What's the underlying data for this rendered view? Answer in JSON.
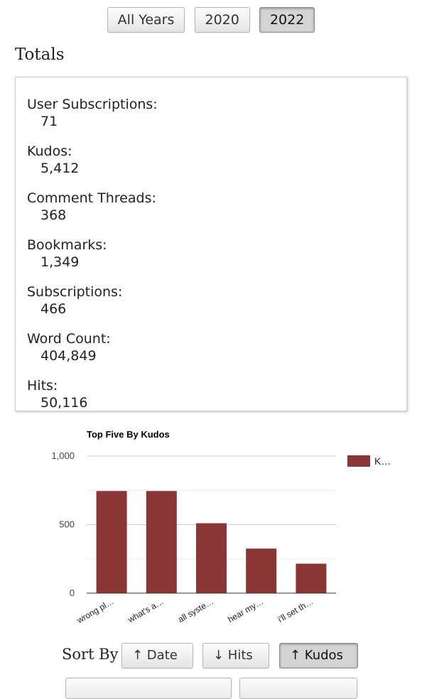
{
  "year_filter": {
    "buttons": [
      "All Years",
      "2020",
      "2022"
    ],
    "active": "2022"
  },
  "totals": {
    "title": "Totals",
    "stats": [
      {
        "label": "User Subscriptions:",
        "value": "71"
      },
      {
        "label": "Kudos:",
        "value": "5,412"
      },
      {
        "label": "Comment Threads:",
        "value": "368"
      },
      {
        "label": "Bookmarks:",
        "value": "1,349"
      },
      {
        "label": "Subscriptions:",
        "value": "466"
      },
      {
        "label": "Word Count:",
        "value": "404,849"
      },
      {
        "label": "Hits:",
        "value": "50,116"
      }
    ]
  },
  "chart_data": {
    "type": "bar",
    "title": "Top Five By Kudos",
    "categories": [
      "wrong pl…",
      "what's a…",
      "all syste…",
      "hear my…",
      "i'll set th…"
    ],
    "series": [
      {
        "name": "K…",
        "values": [
          745,
          745,
          510,
          325,
          215
        ]
      }
    ],
    "ylim": [
      0,
      1000
    ],
    "yticks": [
      "0",
      "500",
      "1,000"
    ],
    "legend": "right",
    "color": "#8b3636",
    "grid": true
  },
  "sort": {
    "label": "Sort By",
    "buttons": [
      {
        "label": "↑ Date",
        "active": false
      },
      {
        "label": "↓ Hits",
        "active": false
      },
      {
        "label": "↑ Kudos",
        "active": true
      }
    ]
  }
}
